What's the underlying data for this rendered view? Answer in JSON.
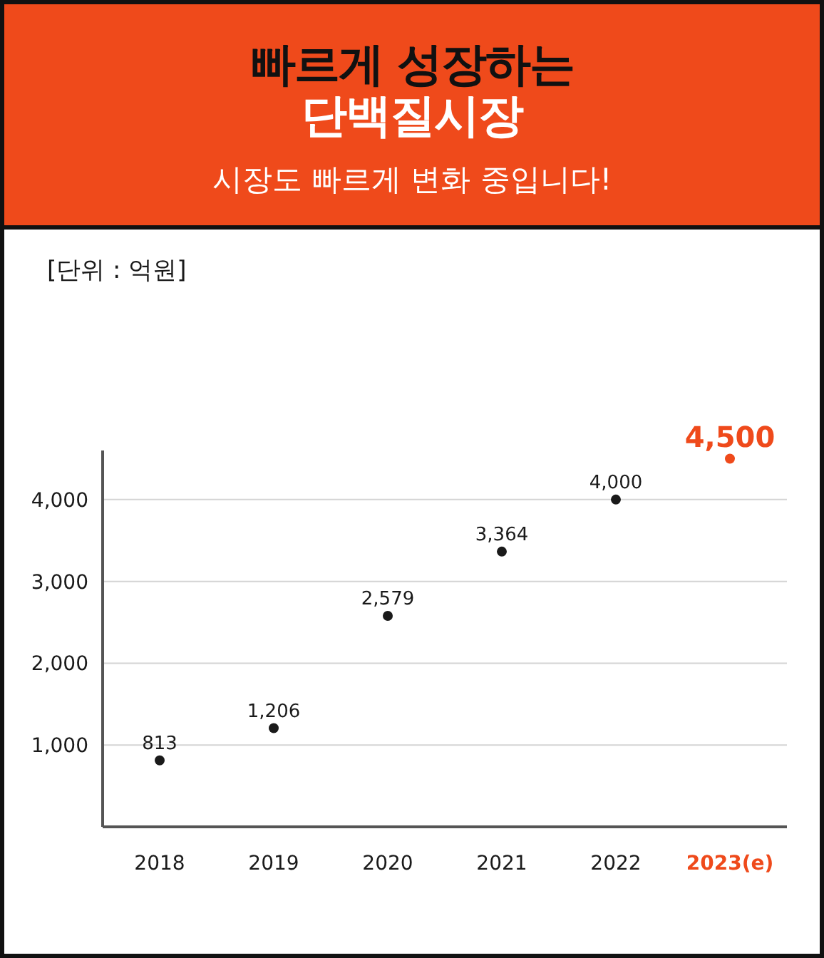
{
  "chart_data": {
    "type": "scatter",
    "title": "빠르게 성장하는\n단백질시장",
    "subtitle": "시장도 빠르게 변화 중입니다!",
    "annotations": [
      "[단위 : 억원]"
    ],
    "categories": [
      "2018",
      "2019",
      "2020",
      "2021",
      "2022",
      "2023(e)"
    ],
    "values": [
      813,
      1206,
      2579,
      3364,
      4000,
      4500
    ],
    "value_labels": [
      "813",
      "1,206",
      "2,579",
      "3,364",
      "4,000",
      "4,500"
    ],
    "colors": [
      "#1a1a1a",
      "#1a1a1a",
      "#1a1a1a",
      "#1a1a1a",
      "#1a1a1a",
      "#ef4a1b"
    ],
    "marker": "circle",
    "ylim": [
      0,
      4600
    ],
    "yticks": [
      {
        "value": 1000,
        "label": "1,000"
      },
      {
        "value": 2000,
        "label": "2,000"
      },
      {
        "value": 3000,
        "label": "3,000"
      },
      {
        "value": 4000,
        "label": "4,000"
      }
    ],
    "grid": "y"
  }
}
